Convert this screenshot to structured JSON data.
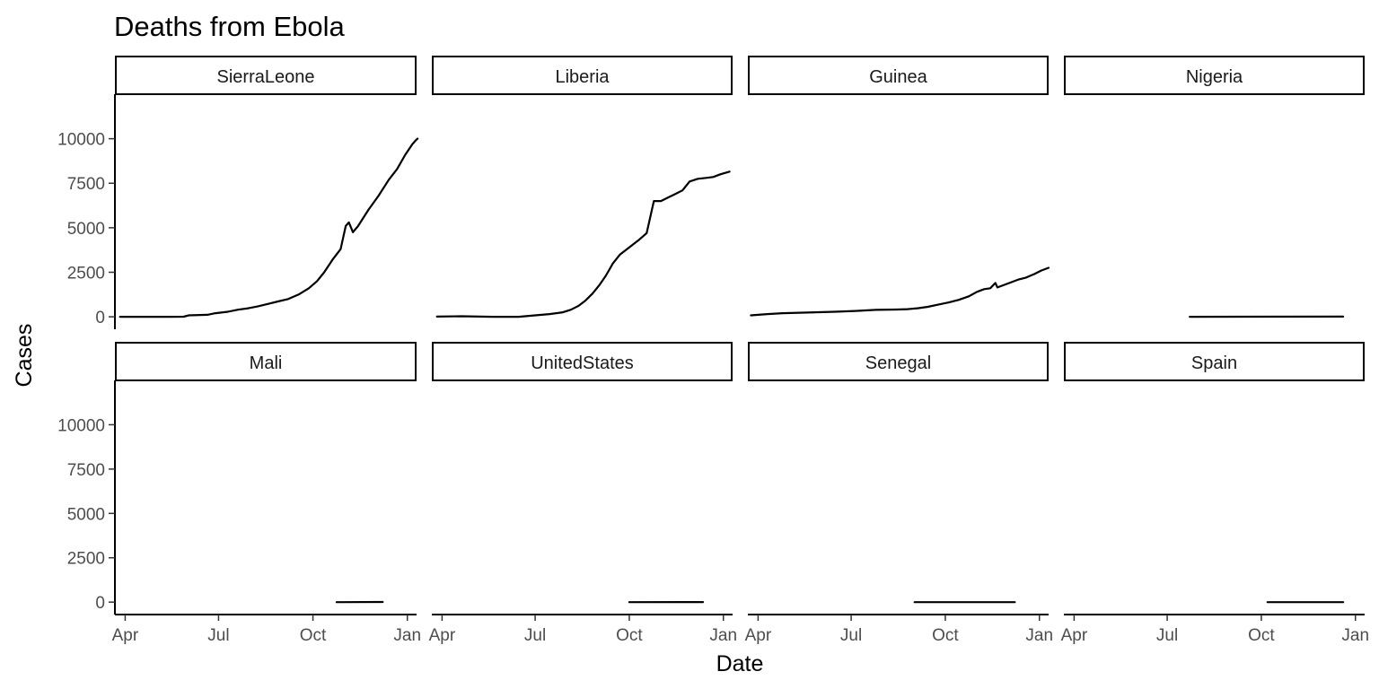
{
  "chart_data": {
    "type": "line",
    "title": "Deaths from Ebola",
    "xlabel": "Date",
    "ylabel": "Cases",
    "x_ticks": [
      {
        "label": "Apr",
        "date": "2014-04-01"
      },
      {
        "label": "Jul",
        "date": "2014-07-01"
      },
      {
        "label": "Oct",
        "date": "2014-10-01"
      },
      {
        "label": "Jan",
        "date": "2015-01-01"
      }
    ],
    "xlim": [
      "2014-03-22",
      "2015-01-10"
    ],
    "ylim": [
      -700,
      12500
    ],
    "y_ticks": [
      0,
      2500,
      5000,
      7500,
      10000
    ],
    "grid": false,
    "facets": [
      {
        "name": "SierraLeone",
        "points": [
          [
            "2014-03-27",
            0
          ],
          [
            "2014-05-15",
            0
          ],
          [
            "2014-05-28",
            5
          ],
          [
            "2014-06-02",
            80
          ],
          [
            "2014-06-20",
            110
          ],
          [
            "2014-06-28",
            200
          ],
          [
            "2014-07-10",
            280
          ],
          [
            "2014-07-20",
            400
          ],
          [
            "2014-07-30",
            480
          ],
          [
            "2014-08-08",
            580
          ],
          [
            "2014-08-18",
            720
          ],
          [
            "2014-08-28",
            860
          ],
          [
            "2014-09-07",
            1000
          ],
          [
            "2014-09-17",
            1250
          ],
          [
            "2014-09-27",
            1600
          ],
          [
            "2014-10-05",
            2000
          ],
          [
            "2014-10-12",
            2500
          ],
          [
            "2014-10-20",
            3200
          ],
          [
            "2014-10-28",
            3800
          ],
          [
            "2014-11-02",
            5100
          ],
          [
            "2014-11-05",
            5300
          ],
          [
            "2014-11-09",
            4750
          ],
          [
            "2014-11-14",
            5100
          ],
          [
            "2014-11-24",
            6000
          ],
          [
            "2014-12-04",
            6800
          ],
          [
            "2014-12-14",
            7700
          ],
          [
            "2014-12-22",
            8300
          ],
          [
            "2014-12-30",
            9100
          ],
          [
            "2015-01-06",
            9700
          ],
          [
            "2015-01-09",
            9900
          ],
          [
            "2015-01-11",
            10000
          ]
        ]
      },
      {
        "name": "Liberia",
        "points": [
          [
            "2014-03-27",
            10
          ],
          [
            "2014-04-20",
            30
          ],
          [
            "2014-05-20",
            0
          ],
          [
            "2014-06-15",
            0
          ],
          [
            "2014-07-01",
            80
          ],
          [
            "2014-07-15",
            150
          ],
          [
            "2014-07-28",
            250
          ],
          [
            "2014-08-05",
            400
          ],
          [
            "2014-08-12",
            600
          ],
          [
            "2014-08-19",
            900
          ],
          [
            "2014-08-26",
            1300
          ],
          [
            "2014-09-02",
            1800
          ],
          [
            "2014-09-08",
            2300
          ],
          [
            "2014-09-15",
            3000
          ],
          [
            "2014-09-22",
            3500
          ],
          [
            "2014-10-01",
            3900
          ],
          [
            "2014-10-10",
            4300
          ],
          [
            "2014-10-18",
            4700
          ],
          [
            "2014-10-25",
            6500
          ],
          [
            "2014-11-01",
            6500
          ],
          [
            "2014-11-08",
            6700
          ],
          [
            "2014-11-15",
            6900
          ],
          [
            "2014-11-22",
            7100
          ],
          [
            "2014-11-29",
            7600
          ],
          [
            "2014-12-07",
            7750
          ],
          [
            "2014-12-15",
            7800
          ],
          [
            "2014-12-22",
            7850
          ],
          [
            "2014-12-29",
            8000
          ],
          [
            "2015-01-07",
            8150
          ]
        ]
      },
      {
        "name": "Guinea",
        "points": [
          [
            "2014-03-25",
            80
          ],
          [
            "2014-04-10",
            150
          ],
          [
            "2014-04-25",
            200
          ],
          [
            "2014-05-15",
            230
          ],
          [
            "2014-06-15",
            280
          ],
          [
            "2014-07-05",
            330
          ],
          [
            "2014-07-25",
            390
          ],
          [
            "2014-08-15",
            410
          ],
          [
            "2014-08-25",
            430
          ],
          [
            "2014-09-04",
            480
          ],
          [
            "2014-09-14",
            560
          ],
          [
            "2014-09-24",
            680
          ],
          [
            "2014-10-04",
            800
          ],
          [
            "2014-10-14",
            950
          ],
          [
            "2014-10-24",
            1150
          ],
          [
            "2014-11-01",
            1400
          ],
          [
            "2014-11-08",
            1550
          ],
          [
            "2014-11-14",
            1600
          ],
          [
            "2014-11-19",
            1900
          ],
          [
            "2014-11-21",
            1650
          ],
          [
            "2014-11-28",
            1800
          ],
          [
            "2014-12-05",
            1950
          ],
          [
            "2014-12-12",
            2100
          ],
          [
            "2014-12-19",
            2200
          ],
          [
            "2014-12-27",
            2400
          ],
          [
            "2015-01-03",
            2600
          ],
          [
            "2015-01-10",
            2750
          ]
        ]
      },
      {
        "name": "Nigeria",
        "points": [
          [
            "2014-07-23",
            0
          ],
          [
            "2014-12-20",
            8
          ]
        ]
      },
      {
        "name": "Mali",
        "points": [
          [
            "2014-10-24",
            0
          ],
          [
            "2014-12-08",
            6
          ]
        ]
      },
      {
        "name": "UnitedStates",
        "points": [
          [
            "2014-10-01",
            0
          ],
          [
            "2014-12-12",
            1
          ]
        ]
      },
      {
        "name": "Senegal",
        "points": [
          [
            "2014-09-01",
            0
          ],
          [
            "2014-12-08",
            0
          ]
        ]
      },
      {
        "name": "Spain",
        "points": [
          [
            "2014-10-07",
            0
          ],
          [
            "2014-12-20",
            0
          ]
        ]
      }
    ]
  }
}
